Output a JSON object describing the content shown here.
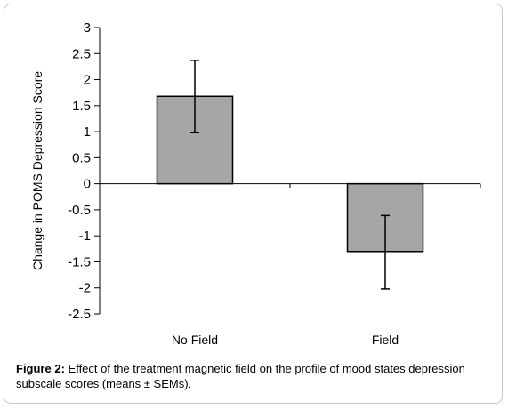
{
  "chart_data": {
    "type": "bar",
    "categories": [
      "No Field",
      "Field"
    ],
    "values": [
      1.68,
      -1.3
    ],
    "error_low": [
      0.98,
      -2.02
    ],
    "error_high": [
      2.37,
      -0.61
    ],
    "ylabel": "Change in  POMS Depression Score",
    "xlabel": "",
    "ylim": [
      -2.5,
      3
    ],
    "yticks": [
      "3",
      "2.5",
      "2",
      "1.5",
      "1",
      "0.5",
      "0",
      "-0.5",
      "-1",
      "-1.5",
      "-2",
      "-2.5"
    ],
    "bar_color": "#a6a6a6",
    "grid": false,
    "legend": "none"
  },
  "caption": {
    "label": "Figure 2:",
    "text": " Effect of the treatment magnetic field on the profile of mood states depression subscale scores (means ± SEMs)."
  }
}
